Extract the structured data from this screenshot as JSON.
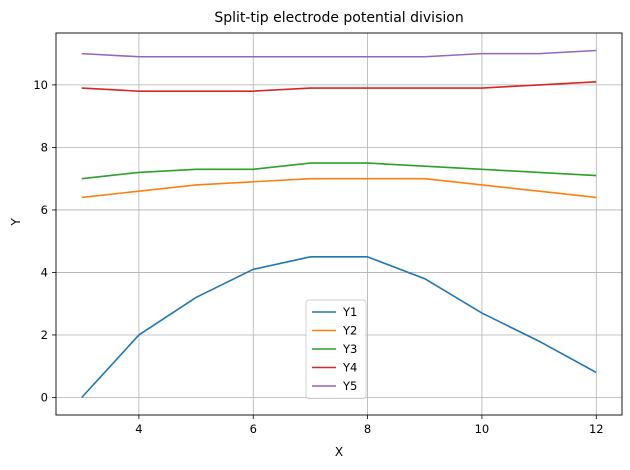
{
  "chart_data": {
    "type": "line",
    "title": "Split-tip electrode potential division",
    "xlabel": "X",
    "ylabel": "Y",
    "x": [
      3,
      4,
      5,
      6,
      7,
      8,
      9,
      10,
      11,
      12
    ],
    "xlim": [
      2.55,
      12.45
    ],
    "ylim": [
      -0.56,
      11.66
    ],
    "xticks": [
      4,
      6,
      8,
      10,
      12
    ],
    "yticks": [
      0,
      2,
      4,
      6,
      8,
      10
    ],
    "grid": true,
    "legend_position": "lower-center",
    "series": [
      {
        "name": "Y1",
        "color": "#1f77b4",
        "values": [
          0.0,
          2.0,
          3.2,
          4.1,
          4.5,
          4.5,
          3.8,
          2.7,
          1.8,
          0.8
        ]
      },
      {
        "name": "Y2",
        "color": "#ff7f0e",
        "values": [
          6.4,
          6.6,
          6.8,
          6.9,
          7.0,
          7.0,
          7.0,
          6.8,
          6.6,
          6.4
        ]
      },
      {
        "name": "Y3",
        "color": "#2ca02c",
        "values": [
          7.0,
          7.2,
          7.3,
          7.3,
          7.5,
          7.5,
          7.4,
          7.3,
          7.2,
          7.1
        ]
      },
      {
        "name": "Y4",
        "color": "#d62728",
        "values": [
          9.9,
          9.8,
          9.8,
          9.8,
          9.9,
          9.9,
          9.9,
          9.9,
          10.0,
          10.1
        ]
      },
      {
        "name": "Y5",
        "color": "#9467bd",
        "values": [
          11.0,
          10.9,
          10.9,
          10.9,
          10.9,
          10.9,
          10.9,
          11.0,
          11.0,
          11.1
        ]
      }
    ]
  }
}
